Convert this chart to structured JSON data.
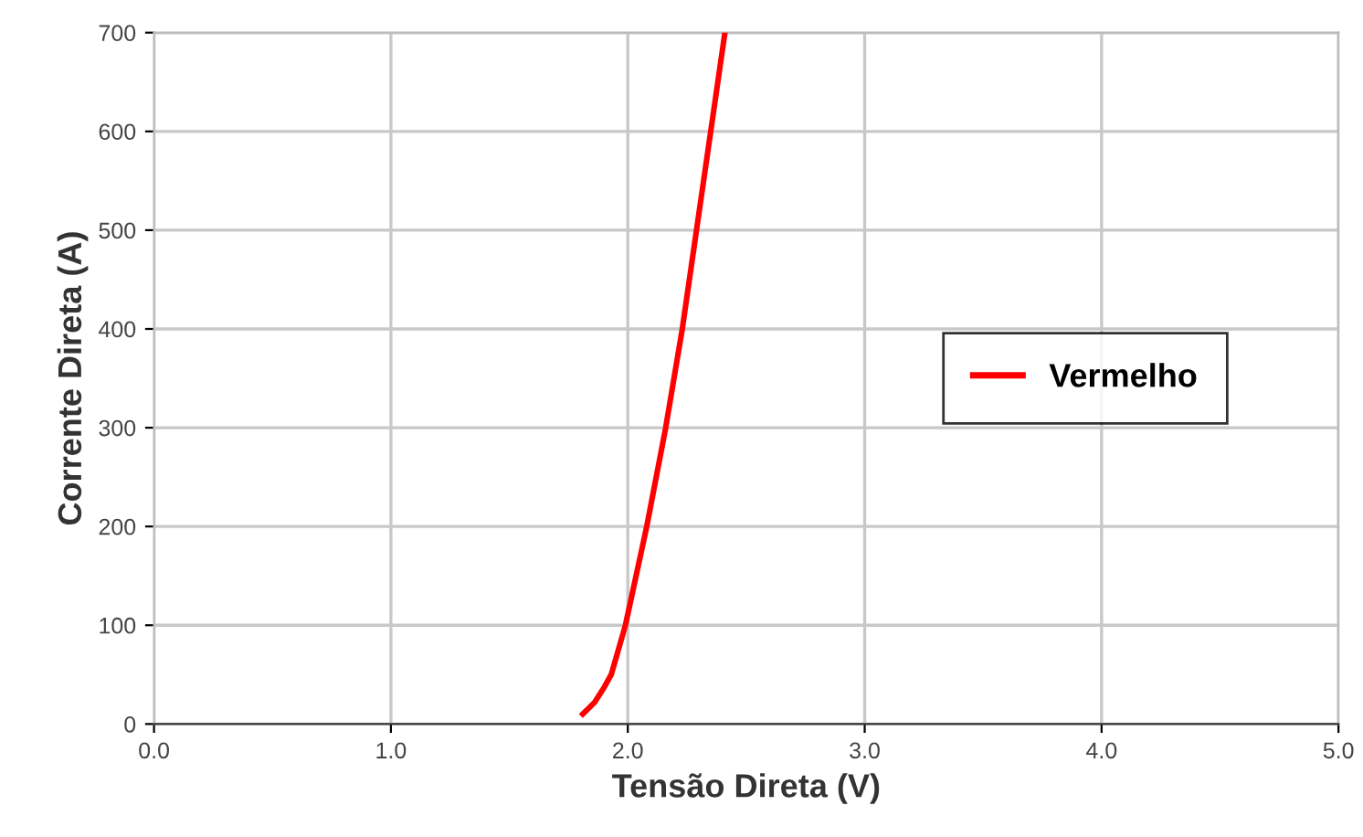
{
  "chart_data": {
    "type": "line",
    "xlabel": "Tensão Direta (V)",
    "ylabel": "Corrente Direta (A)",
    "xlim": [
      0,
      5
    ],
    "ylim": [
      0,
      700
    ],
    "xticks": [
      {
        "value": 0,
        "label": "0.0"
      },
      {
        "value": 1,
        "label": "1.0"
      },
      {
        "value": 2,
        "label": "2.0"
      },
      {
        "value": 3,
        "label": "3.0"
      },
      {
        "value": 4,
        "label": "4.0"
      },
      {
        "value": 5,
        "label": "5.0"
      }
    ],
    "yticks": [
      0,
      100,
      200,
      300,
      400,
      500,
      600,
      700
    ],
    "grid": true,
    "legend": "right",
    "marker": "none",
    "line_style": "solid",
    "series": [
      {
        "name": "Vermelho",
        "color": "#ff0000",
        "x": [
          1.81,
          1.86,
          1.9,
          1.93,
          1.99,
          2.08,
          2.16,
          2.23,
          2.29,
          2.35,
          2.41
        ],
        "values": [
          10,
          22,
          37,
          50,
          100,
          200,
          300,
          400,
          500,
          600,
          700
        ]
      }
    ]
  }
}
